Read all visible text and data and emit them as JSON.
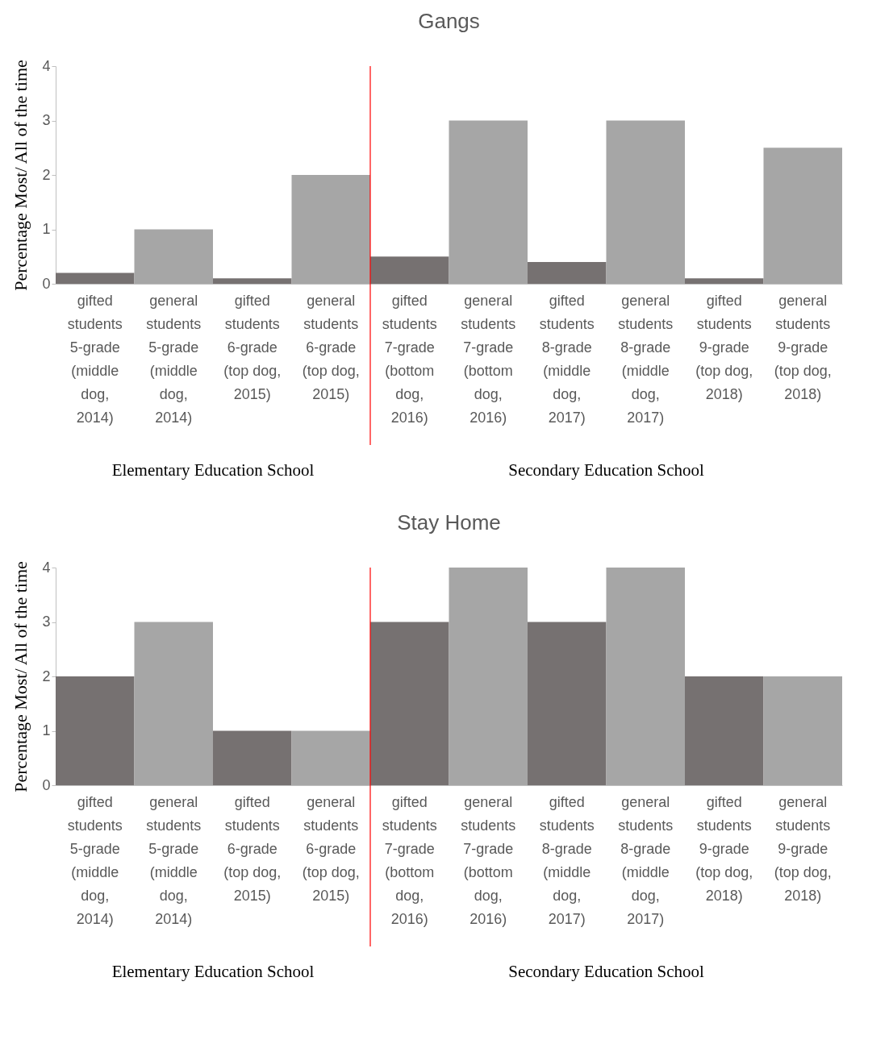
{
  "chart_data": [
    {
      "type": "bar",
      "title": "Gangs",
      "ylabel": "Percentage  Most/ All of the time",
      "categories": [
        "gifted students 5-grade (middle dog, 2014)",
        "general students 5-grade (middle dog, 2014)",
        "gifted students 6-grade (top dog, 2015)",
        "general students 6-grade (top dog, 2015)",
        "gifted students 7-grade (bottom dog, 2016)",
        "general students 7-grade (bottom dog, 2016)",
        "gifted students 8-grade (middle dog, 2017)",
        "general students 8-grade (middle dog, 2017)",
        "gifted students 9-grade (top dog, 2018)",
        "general students 9-grade (top dog, 2018)"
      ],
      "values": [
        0.2,
        1,
        0.1,
        2,
        0.5,
        3,
        0.4,
        3,
        0.1,
        2.5
      ],
      "colors": [
        "#767171",
        "#a6a6a6",
        "#767171",
        "#a6a6a6",
        "#767171",
        "#a6a6a6",
        "#767171",
        "#a6a6a6",
        "#767171",
        "#a6a6a6"
      ],
      "ylim": [
        0,
        4
      ],
      "yticks": [
        0,
        1,
        2,
        3,
        4
      ],
      "ref_lines": [
        {
          "axis": "x",
          "value": "gifted students 7-grade (bottom dog, 2016)",
          "color": "#ff0000"
        }
      ],
      "annotations": [
        "Elementary Education School",
        "Secondary Education School"
      ]
    },
    {
      "type": "bar",
      "title": "Stay Home",
      "ylabel": "Percentage  Most/ All of the time",
      "categories": [
        "gifted students 5-grade (middle dog, 2014)",
        "general students 5-grade (middle dog, 2014)",
        "gifted students 6-grade (top dog, 2015)",
        "general students 6-grade (top dog, 2015)",
        "gifted students 7-grade (bottom dog, 2016)",
        "general students 7-grade (bottom dog, 2016)",
        "gifted students 8-grade (middle dog, 2017)",
        "general students 8-grade (middle dog, 2017)",
        "gifted students 9-grade (top dog, 2018)",
        "general students 9-grade (top dog, 2018)"
      ],
      "values": [
        2,
        3,
        1,
        1,
        3,
        4,
        3,
        4,
        2,
        2
      ],
      "colors": [
        "#767171",
        "#a6a6a6",
        "#767171",
        "#a6a6a6",
        "#767171",
        "#a6a6a6",
        "#767171",
        "#a6a6a6",
        "#767171",
        "#a6a6a6"
      ],
      "ylim": [
        0,
        4
      ],
      "yticks": [
        0,
        1,
        2,
        3,
        4
      ],
      "ref_lines": [
        {
          "axis": "x",
          "value": "gifted students 7-grade (bottom dog, 2016)",
          "color": "#ff0000"
        }
      ],
      "annotations": [
        "Elementary Education School",
        "Secondary Education School"
      ]
    }
  ]
}
